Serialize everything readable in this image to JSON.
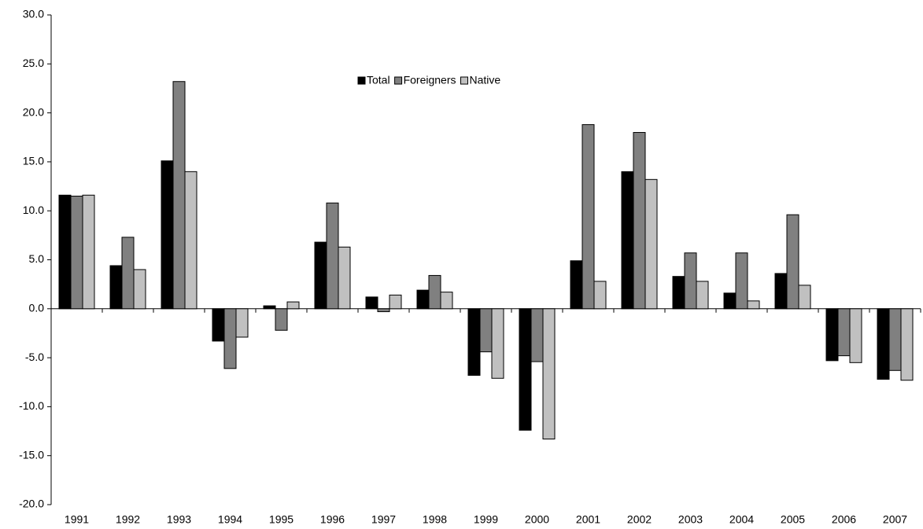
{
  "chart_data": {
    "type": "bar",
    "categories": [
      "1991",
      "1992",
      "1993",
      "1994",
      "1995",
      "1996",
      "1997",
      "1998",
      "1999",
      "2000",
      "2001",
      "2002",
      "2003",
      "2004",
      "2005",
      "2006",
      "2007"
    ],
    "series": [
      {
        "name": "Total",
        "color": "#000000",
        "values": [
          11.6,
          4.4,
          15.1,
          -3.3,
          0.3,
          6.8,
          1.2,
          1.9,
          -6.8,
          -12.4,
          4.9,
          14.0,
          3.3,
          1.6,
          3.6,
          -5.3,
          -7.2
        ]
      },
      {
        "name": "Foreigners",
        "color": "#808080",
        "values": [
          11.5,
          7.3,
          23.2,
          -6.1,
          -2.2,
          10.8,
          -0.3,
          3.4,
          -4.4,
          -5.4,
          18.8,
          18.0,
          5.7,
          5.7,
          9.6,
          -4.8,
          -6.3
        ]
      },
      {
        "name": "Native",
        "color": "#c0c0c0",
        "values": [
          11.6,
          4.0,
          14.0,
          -2.9,
          0.7,
          6.3,
          1.4,
          1.7,
          -7.1,
          -13.3,
          2.8,
          13.2,
          2.8,
          0.8,
          2.4,
          -5.5,
          -7.3
        ]
      }
    ],
    "ylim": [
      -20,
      30
    ],
    "yticks": [
      {
        "value": -20,
        "label": "-20.0"
      },
      {
        "value": -15,
        "label": "-15.0"
      },
      {
        "value": -10,
        "label": "-10.0"
      },
      {
        "value": -5,
        "label": "-5.0"
      },
      {
        "value": 0,
        "label": "0.0"
      },
      {
        "value": 5,
        "label": "5.0"
      },
      {
        "value": 10,
        "label": "10.0"
      },
      {
        "value": 15,
        "label": "15.0"
      },
      {
        "value": 20,
        "label": "20.0"
      },
      {
        "value": 25,
        "label": "25.0"
      },
      {
        "value": 30,
        "label": "30.0"
      }
    ],
    "legend": "top-center"
  }
}
